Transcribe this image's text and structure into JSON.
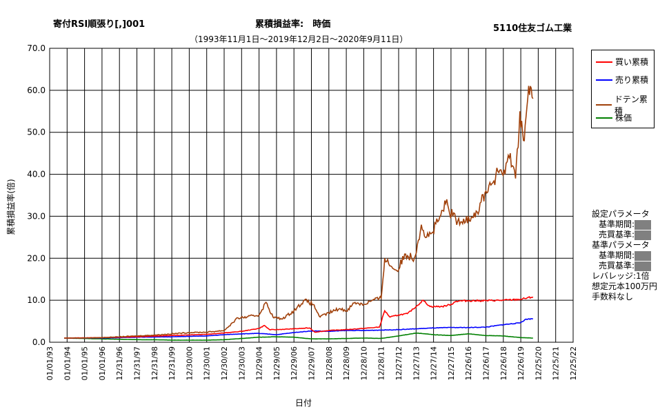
{
  "header": {
    "strategy": "寄付RSI順張り[,]001",
    "metric": "累積損益率:　時価",
    "company": "5110住友ゴム工業",
    "period": "（1993年11月1日～2019年12月2日～2020年9月11日）"
  },
  "legend": {
    "buy": "買い累積",
    "sell": "売り累積",
    "doten": "ドテン累積",
    "stock": "株価"
  },
  "side_panel": {
    "setting_params": "設定パラメータ",
    "base_period_1": "基準期間:",
    "trade_criterion_1": "売買基準:",
    "base_params": "基準パラメータ",
    "base_period_2": "基準期間:",
    "trade_criterion_2": "売買基準:",
    "leverage": "レバレッジ:1倍",
    "capital": "想定元本100万円",
    "fee": "手数料なし"
  },
  "chart_data": {
    "type": "line",
    "xlabel": "日付",
    "ylabel": "累積損益率(倍)",
    "ylim": [
      0,
      70
    ],
    "yticks": [
      "0.0",
      "10.0",
      "20.0",
      "30.0",
      "40.0",
      "50.0",
      "60.0",
      "70.0"
    ],
    "xticks": [
      "01/01/93",
      "01/01/94",
      "01/01/95",
      "01/01/96",
      "12/31/96",
      "12/31/97",
      "12/31/98",
      "12/31/99",
      "12/30/00",
      "12/30/01",
      "12/30/02",
      "12/30/03",
      "12/29/04",
      "12/29/05",
      "12/29/06",
      "12/29/07",
      "12/28/08",
      "12/28/09",
      "12/28/10",
      "12/28/11",
      "12/27/12",
      "12/27/13",
      "12/27/14",
      "12/27/15",
      "12/26/16",
      "12/26/17",
      "12/26/18",
      "12/26/19",
      "12/25/20",
      "12/25/21",
      "12/25/22"
    ],
    "grid": true,
    "legend_position": "right",
    "series": [
      {
        "name": "買い累積",
        "color": "#ff0000",
        "x": [
          1993.83,
          1996,
          1998,
          2000,
          2002,
          2003,
          2004,
          2005,
          2005.3,
          2005.6,
          2006,
          2007,
          2007.9,
          2008.2,
          2009,
          2010,
          2011,
          2011.9,
          2012.2,
          2012.5,
          2013,
          2013.5,
          2014,
          2014.4,
          2014.8,
          2015.5,
          2016,
          2016.3,
          2017,
          2018,
          2019,
          2019.95,
          2020.7
        ],
        "y": [
          1.0,
          1.1,
          1.3,
          1.6,
          1.9,
          2.2,
          2.6,
          3.3,
          4.0,
          3.0,
          3.0,
          3.2,
          3.4,
          2.4,
          2.8,
          3.0,
          3.3,
          3.6,
          7.5,
          6.0,
          6.5,
          6.8,
          8.5,
          10.0,
          8.5,
          8.5,
          9.0,
          9.8,
          9.9,
          9.9,
          10.0,
          10.2,
          10.8
        ]
      },
      {
        "name": "売り累積",
        "color": "#0000ff",
        "x": [
          1993.83,
          1996,
          1998,
          2000,
          2002,
          2003,
          2004,
          2005,
          2006,
          2007,
          2008,
          2009,
          2010,
          2011,
          2012,
          2013,
          2014,
          2015,
          2016,
          2017,
          2018,
          2019,
          2019.95,
          2020.3,
          2020.7
        ],
        "y": [
          1.0,
          1.0,
          1.2,
          1.3,
          1.5,
          1.8,
          2.0,
          2.1,
          1.8,
          2.3,
          2.7,
          2.6,
          2.8,
          2.8,
          2.9,
          3.0,
          3.2,
          3.4,
          3.5,
          3.5,
          3.6,
          4.2,
          4.6,
          5.5,
          5.6
        ]
      },
      {
        "name": "ドテン累積",
        "color": "#a0400a",
        "x": [
          1993.83,
          1995,
          1996,
          1997,
          1998,
          1999,
          2000,
          2001,
          2002,
          2003,
          2003.8,
          2004.3,
          2005,
          2005.4,
          2005.8,
          2006.3,
          2007,
          2007.6,
          2008.1,
          2008.5,
          2009,
          2009.6,
          2010,
          2010.5,
          2011,
          2011.5,
          2012,
          2012.2,
          2012.6,
          2012.9,
          2013.4,
          2013.9,
          2014.3,
          2014.6,
          2014.9,
          2015.3,
          2015.7,
          2016.1,
          2016.5,
          2017,
          2017.5,
          2018,
          2018.4,
          2018.8,
          2019.1,
          2019.4,
          2019.7,
          2019.95,
          2020.2,
          2020.4,
          2020.55,
          2020.7
        ],
        "y": [
          1.0,
          1.0,
          1.1,
          1.3,
          1.5,
          1.7,
          2.0,
          2.3,
          2.4,
          2.8,
          5.8,
          6.0,
          6.5,
          9.5,
          6.0,
          5.5,
          7.5,
          10.0,
          9.0,
          6.0,
          7.0,
          8.0,
          7.5,
          9.5,
          9.0,
          10.0,
          10.5,
          20.0,
          18.0,
          17.0,
          21.0,
          20.0,
          28.0,
          25.0,
          26.0,
          29.0,
          33.0,
          30.0,
          28.0,
          30.0,
          31.0,
          36.0,
          38.0,
          41.0,
          40.0,
          45.0,
          39.0,
          55.0,
          48.0,
          58.0,
          61.0,
          58.0
        ]
      },
      {
        "name": "株価",
        "color": "#008000",
        "x": [
          1993.83,
          1995,
          1996,
          1997,
          1998,
          1999,
          2000,
          2001,
          2002,
          2003,
          2004,
          2005,
          2006,
          2007,
          2008,
          2009,
          2010,
          2011,
          2012,
          2013,
          2014,
          2015,
          2016,
          2017,
          2018,
          2019,
          2020,
          2020.7
        ],
        "y": [
          1.0,
          0.9,
          0.8,
          0.7,
          0.6,
          0.6,
          0.5,
          0.5,
          0.5,
          0.6,
          0.9,
          1.2,
          1.3,
          1.2,
          0.8,
          0.8,
          0.9,
          1.0,
          0.9,
          1.5,
          2.2,
          1.8,
          1.6,
          2.0,
          1.6,
          1.5,
          1.1,
          1.0
        ]
      }
    ]
  }
}
